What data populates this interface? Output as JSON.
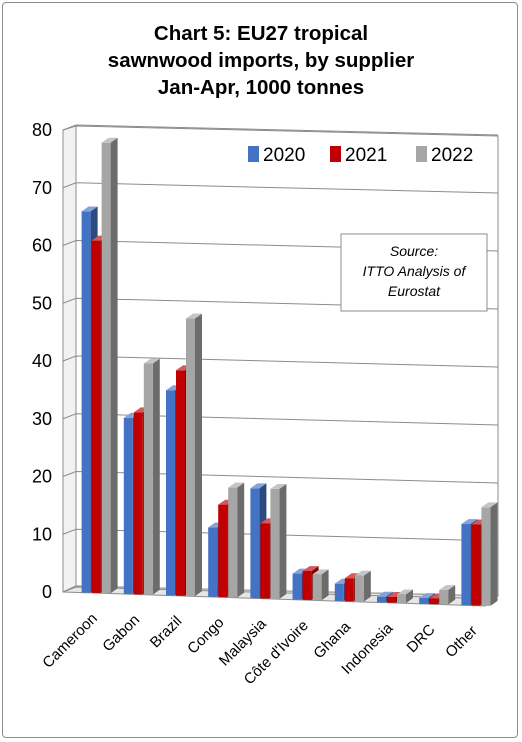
{
  "chart_data": {
    "type": "bar",
    "title_lines": [
      "Chart 5: EU27 tropical",
      "sawnwood imports, by supplier",
      "Jan-Apr, 1000 tonnes"
    ],
    "categories": [
      "Cameroon",
      "Gabon",
      "Brazil",
      "Congo",
      "Malaysia",
      "Côte d'Ivoire",
      "Ghana",
      "Indonesia",
      "DRC",
      "Other"
    ],
    "series": [
      {
        "name": "2020",
        "color": "#4472C4",
        "values": [
          66,
          30.5,
          35.5,
          12,
          19,
          4.5,
          3,
          1,
          1,
          14
        ]
      },
      {
        "name": "2021",
        "color": "#C00000",
        "values": [
          61,
          31.5,
          39,
          16,
          13,
          5,
          4,
          1,
          1,
          14
        ]
      },
      {
        "name": "2022",
        "color": "#A6A6A6",
        "values": [
          78,
          40,
          48,
          19,
          19,
          4.5,
          4.5,
          1.5,
          2.5,
          17
        ]
      }
    ],
    "ylim": [
      0,
      80
    ],
    "yticks": [
      0,
      10,
      20,
      30,
      40,
      50,
      60,
      70,
      80
    ],
    "legend_position": "top-right",
    "grid": true,
    "source_lines": [
      "Source:",
      "ITTO Analysis of",
      "Eurostat"
    ]
  }
}
